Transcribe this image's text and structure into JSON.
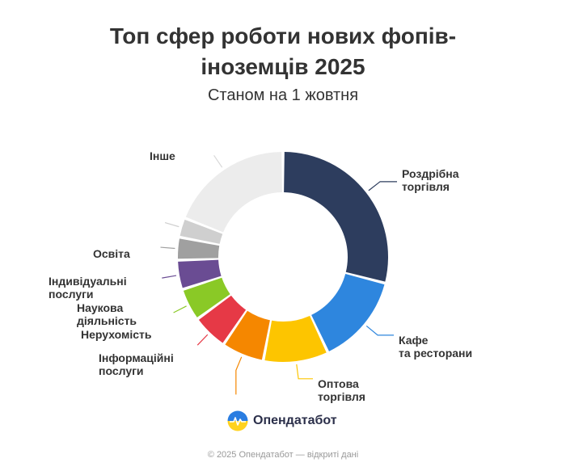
{
  "title_lines": [
    "Топ сфер роботи нових фопів-",
    "іноземців 2025"
  ],
  "subtitle": "Станом на 1 жовтня",
  "chart_data": {
    "type": "pie",
    "donut": true,
    "title": "Топ сфер роботи нових фопів-іноземців 2025",
    "subtitle": "Станом на 1 жовтня",
    "slices": [
      {
        "label": "Роздрібна торгівля",
        "value": 29,
        "color": "#2d3d5e"
      },
      {
        "label": "Кафе та ресторани",
        "value": 14,
        "color": "#2e86de"
      },
      {
        "label": "Оптова торгівля",
        "value": 10,
        "color": "#fdc500"
      },
      {
        "label": "",
        "value": 6.5,
        "color": "#f58700"
      },
      {
        "label": "Інформаційні послуги",
        "value": 5.5,
        "color": "#e63946"
      },
      {
        "label": "Нерухомість",
        "value": 5,
        "color": "#8ac926"
      },
      {
        "label": "Наукова діяльність",
        "value": 4.5,
        "color": "#6a4c93"
      },
      {
        "label": "Індивідуальні послуги",
        "value": 3.5,
        "color": "#a0a0a0"
      },
      {
        "label": "Освіта",
        "value": 3,
        "color": "#cfcfcf"
      },
      {
        "label": "Інше",
        "value": 19,
        "color": "#ececec"
      }
    ]
  },
  "brand": {
    "name": "Опендатабот"
  },
  "footer": "© 2025 Опендатабот — відкриті дані"
}
